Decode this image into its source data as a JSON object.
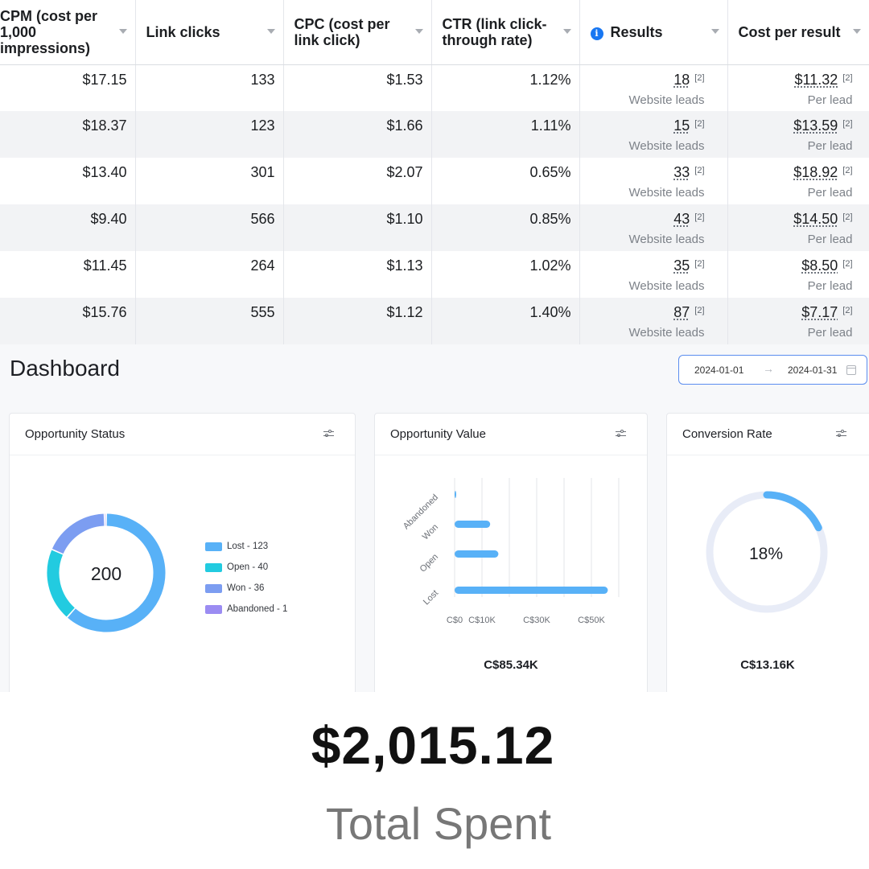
{
  "ads_table": {
    "columns": [
      {
        "label": "CPM (cost per 1,000 impressions)"
      },
      {
        "label": "Link clicks"
      },
      {
        "label": "CPC (cost per link click)"
      },
      {
        "label": "CTR (link click-through rate)"
      },
      {
        "label": "Results",
        "info": "i"
      },
      {
        "label": "Cost per result"
      }
    ],
    "rows": [
      {
        "cpm": "$17.15",
        "clicks": "133",
        "cpc": "$1.53",
        "ctr": "1.12%",
        "results": "18",
        "results_ref": "[2]",
        "results_sub": "Website leads",
        "cost": "$11.32",
        "cost_ref": "[2]",
        "cost_sub": "Per lead"
      },
      {
        "cpm": "$18.37",
        "clicks": "123",
        "cpc": "$1.66",
        "ctr": "1.11%",
        "results": "15",
        "results_ref": "[2]",
        "results_sub": "Website leads",
        "cost": "$13.59",
        "cost_ref": "[2]",
        "cost_sub": "Per lead"
      },
      {
        "cpm": "$13.40",
        "clicks": "301",
        "cpc": "$2.07",
        "ctr": "0.65%",
        "results": "33",
        "results_ref": "[2]",
        "results_sub": "Website leads",
        "cost": "$18.92",
        "cost_ref": "[2]",
        "cost_sub": "Per lead"
      },
      {
        "cpm": "$9.40",
        "clicks": "566",
        "cpc": "$1.10",
        "ctr": "0.85%",
        "results": "43",
        "results_ref": "[2]",
        "results_sub": "Website leads",
        "cost": "$14.50",
        "cost_ref": "[2]",
        "cost_sub": "Per lead"
      },
      {
        "cpm": "$11.45",
        "clicks": "264",
        "cpc": "$1.13",
        "ctr": "1.02%",
        "results": "35",
        "results_ref": "[2]",
        "results_sub": "Website leads",
        "cost": "$8.50",
        "cost_ref": "[2]",
        "cost_sub": "Per lead"
      },
      {
        "cpm": "$15.76",
        "clicks": "555",
        "cpc": "$1.12",
        "ctr": "1.40%",
        "results": "87",
        "results_ref": "[2]",
        "results_sub": "Website leads",
        "cost": "$7.17",
        "cost_ref": "[2]",
        "cost_sub": "Per lead"
      }
    ]
  },
  "dashboard": {
    "title": "Dashboard",
    "date_start": "2024-01-01",
    "date_end": "2024-01-31",
    "arrow": "→"
  },
  "cards": {
    "status": {
      "title": "Opportunity Status",
      "center_value": "200"
    },
    "value": {
      "title": "Opportunity Value",
      "total": "C$85.34K"
    },
    "conversion": {
      "title": "Conversion Rate",
      "percent_label": "18%",
      "total": "C$13.16K"
    }
  },
  "chart_data": [
    {
      "type": "pie",
      "title": "Opportunity Status",
      "center_label": "200",
      "slices": [
        {
          "label": "Lost - 123",
          "value": 123,
          "color": "#58b1f7"
        },
        {
          "label": "Open - 40",
          "value": 40,
          "color": "#22cbe0"
        },
        {
          "label": "Won - 36",
          "value": 36,
          "color": "#7c9df1"
        },
        {
          "label": "Abandoned - 1",
          "value": 1,
          "color": "#9b8cf2"
        }
      ]
    },
    {
      "type": "bar",
      "orientation": "horizontal",
      "title": "Opportunity Value",
      "categories": [
        "Abandoned",
        "Won",
        "Open",
        "Lost"
      ],
      "values": [
        200,
        13000,
        16000,
        56000
      ],
      "xticks": [
        "C$0",
        "C$10K",
        "C$30K",
        "C$50K"
      ],
      "xtick_values": [
        0,
        10000,
        30000,
        50000
      ],
      "xlim": [
        0,
        60000
      ],
      "grid_values": [
        0,
        10000,
        20000,
        30000,
        40000,
        50000,
        60000
      ],
      "color": "#58b1f7"
    },
    {
      "type": "pie",
      "title": "Conversion Rate",
      "value": 18,
      "center_label": "18%",
      "color": "#58b1f7",
      "track_color": "#e8ecf7"
    }
  ],
  "total": {
    "amount": "$2,015.12",
    "label": "Total Spent"
  }
}
